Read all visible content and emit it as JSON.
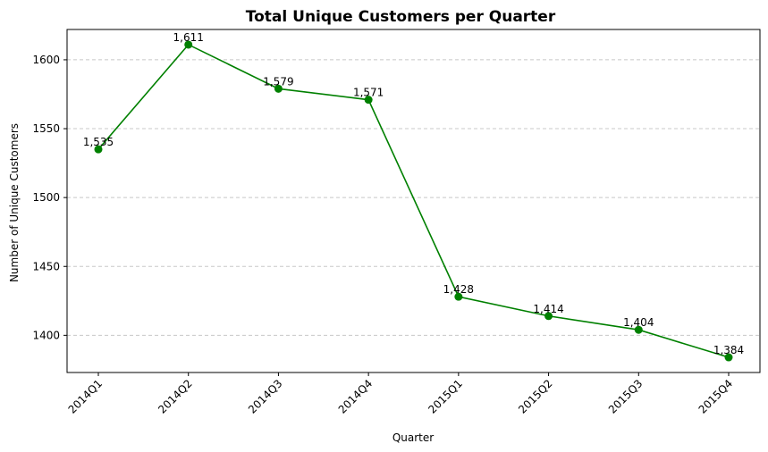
{
  "chart_data": {
    "type": "line",
    "title": "Total Unique Customers per Quarter",
    "xlabel": "Quarter",
    "ylabel": "Number of Unique Customers",
    "categories": [
      "2014Q1",
      "2014Q2",
      "2014Q3",
      "2014Q4",
      "2015Q1",
      "2015Q2",
      "2015Q3",
      "2015Q4"
    ],
    "values": [
      1535,
      1611,
      1579,
      1571,
      1428,
      1414,
      1404,
      1384
    ],
    "data_labels": [
      "1,535",
      "1,611",
      "1,579",
      "1,571",
      "1,428",
      "1,414",
      "1,404",
      "1,384"
    ],
    "yticks": [
      1400,
      1450,
      1500,
      1550,
      1600
    ],
    "ytick_labels": [
      "1400",
      "1450",
      "1500",
      "1550",
      "1600"
    ],
    "ylim": [
      1373,
      1622
    ],
    "grid": "y-dashed",
    "line_color": "#008000",
    "grid_color": "#c8c8c8"
  }
}
